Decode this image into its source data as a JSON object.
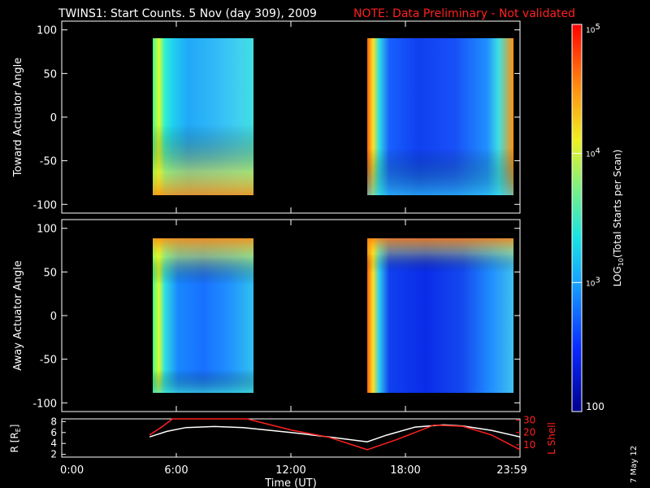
{
  "header": {
    "title": "TWINS1: Start Counts.  5 Nov (day 309), 2009",
    "note": "NOTE: Data Preliminary - Not validated"
  },
  "footer": {
    "date_stamp": "7 May 12"
  },
  "colors": {
    "background": "#000000",
    "axes": "#ffffff",
    "note": "#ff2020",
    "r_line": "#ffffff",
    "lshell_line": "#ff2020"
  },
  "chart_data": [
    {
      "id": "toward",
      "type": "heatmap",
      "ylabel": "Toward Actuator Angle",
      "x_range_hours": [
        0,
        24
      ],
      "ylim": [
        -110,
        110
      ],
      "yticks": [
        -100,
        -50,
        0,
        50,
        100
      ],
      "data_y_range": [
        -90,
        90
      ],
      "segments": [
        {
          "start": "04:40",
          "end": "10:20"
        },
        {
          "start": "16:20",
          "end": "24:00"
        }
      ]
    },
    {
      "id": "away",
      "type": "heatmap",
      "ylabel": "Away Actuator Angle",
      "x_range_hours": [
        0,
        24
      ],
      "ylim": [
        -110,
        110
      ],
      "yticks": [
        -100,
        -50,
        0,
        50,
        100
      ],
      "data_y_range": [
        -90,
        90
      ],
      "segments": [
        {
          "start": "04:40",
          "end": "10:20"
        },
        {
          "start": "16:20",
          "end": "24:00"
        }
      ]
    },
    {
      "id": "orbit",
      "type": "line",
      "xlabel": "Time (UT)",
      "xticks": [
        "0:00",
        "6:00",
        "12:00",
        "18:00",
        "23:59"
      ],
      "xtick_hours": [
        0,
        6,
        12,
        18,
        24
      ],
      "ylabel_left": "R [R",
      "ylabel_left_sub": "E",
      "ylabel_left_end": "]",
      "ylabel_right": "L Shell",
      "yticks_left": [
        2,
        4,
        6,
        8
      ],
      "ylim_left": [
        1.5,
        8.5
      ],
      "yticks_right": [
        10,
        20,
        30
      ],
      "ylim_right": [
        0,
        31
      ],
      "series": [
        {
          "axis": "left",
          "x": [
            4.6,
            5.5,
            6.5,
            8.0,
            9.5,
            12.0,
            14.0,
            16.0,
            17.0,
            18.5,
            20.0,
            21.0,
            22.5,
            24.0
          ],
          "y": [
            5.2,
            6.2,
            6.9,
            7.1,
            6.9,
            6.0,
            5.2,
            4.3,
            5.5,
            7.0,
            7.4,
            7.2,
            6.4,
            5.2
          ]
        },
        {
          "axis": "right",
          "x": [
            4.6,
            5.2,
            5.8,
            9.7,
            12.0,
            14.0,
            16.0,
            17.5,
            19.5,
            21.0,
            22.5,
            24.0
          ],
          "y": [
            18.0,
            24.0,
            31.0,
            31.0,
            22.0,
            16.0,
            6.0,
            14.0,
            26.0,
            25.0,
            18.0,
            6.0
          ]
        }
      ]
    }
  ],
  "colorbar": {
    "label": "LOG",
    "label_sub": "10",
    "label_end": "(Total Starts per Scan)",
    "scale": "log",
    "range": [
      100,
      100000
    ],
    "ticks": [
      {
        "value": 100,
        "text": "100"
      },
      {
        "value": 1000,
        "text": "10",
        "sup": "3"
      },
      {
        "value": 10000,
        "text": "10",
        "sup": "4"
      },
      {
        "value": 100000,
        "text": "10",
        "sup": "5"
      }
    ]
  }
}
